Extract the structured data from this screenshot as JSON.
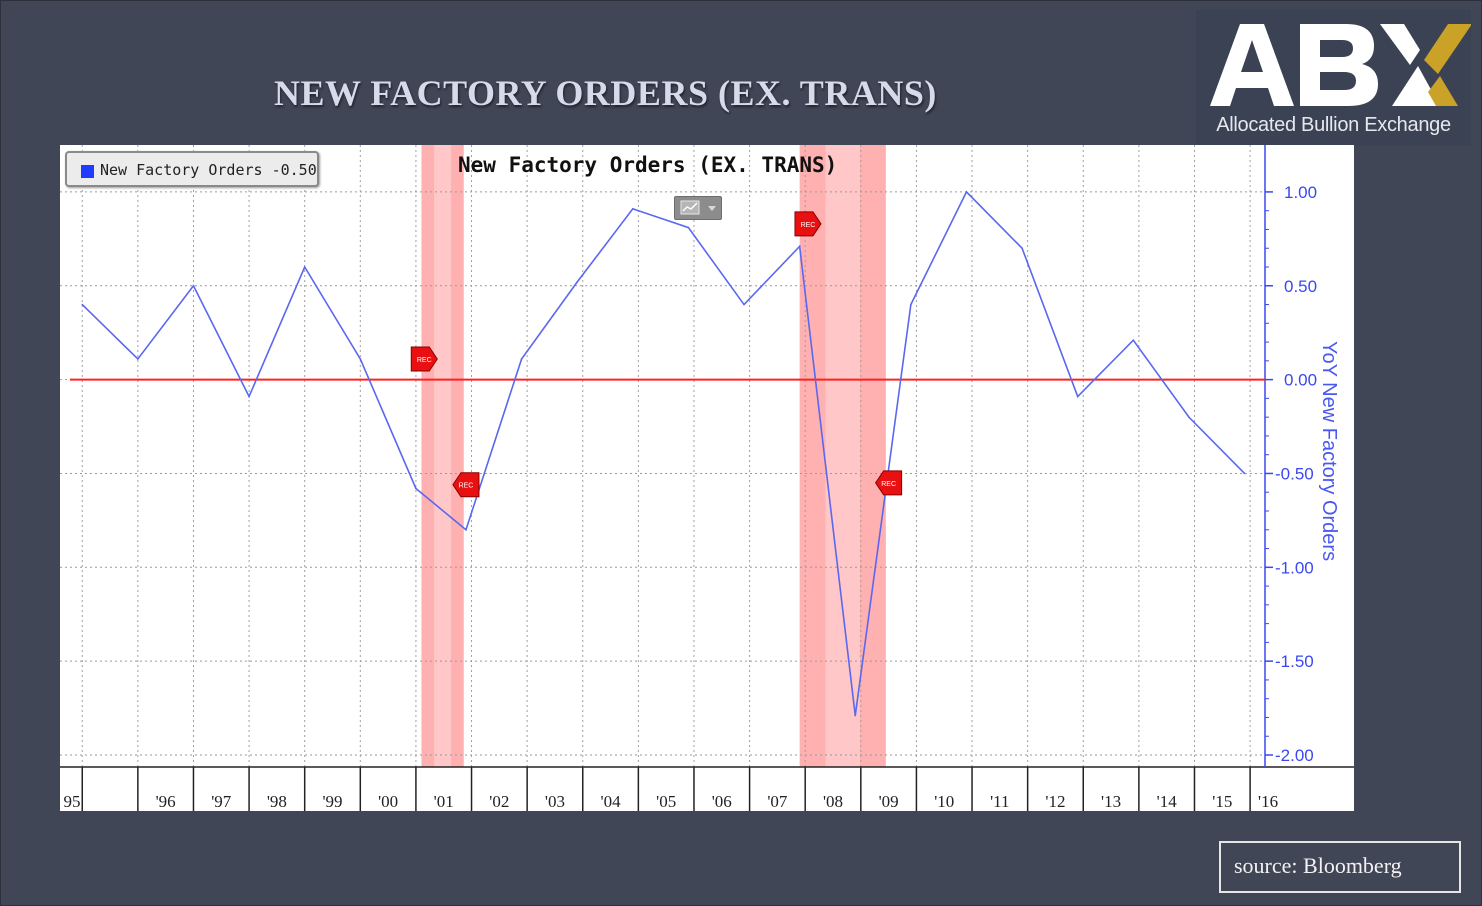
{
  "page_title": "NEW FACTORY ORDERS (EX. TRANS)",
  "logo": {
    "letters": "ABX",
    "tagline": "Allocated Bullion Exchange",
    "colors": {
      "white": "#ffffff",
      "gold": "#c9a227",
      "background": "#3a4254"
    }
  },
  "source_label": "source: Bloomberg",
  "chart_data": {
    "type": "line",
    "title": "New Factory Orders (EX. TRANS)",
    "legend": {
      "label": "New Factory Orders",
      "value": "-0.50",
      "color": "#1f3cff",
      "placement": "top-left"
    },
    "ylabel": "YoY New Factory Orders",
    "ylim": [
      -2.0,
      1.25
    ],
    "y_ticks": [
      1.0,
      0.5,
      0.0,
      -0.5,
      -1.0,
      -1.5,
      -2.0
    ],
    "y_tick_labels": [
      "1.00",
      "0.50",
      "0.00",
      "-0.50",
      "-1.00",
      "-1.50",
      "-2.00"
    ],
    "y_axis_side": "right",
    "x_tick_labels": [
      "95",
      "'96",
      "'97",
      "'98",
      "'99",
      "'00",
      "'01",
      "'02",
      "'03",
      "'04",
      "'05",
      "'06",
      "'07",
      "'08",
      "'09",
      "'10",
      "'11",
      "'12",
      "'13",
      "'14",
      "'15",
      "'16"
    ],
    "x_tick_positions": [
      1995,
      1996,
      1997,
      1998,
      1999,
      2000,
      2001,
      2002,
      2003,
      2004,
      2005,
      2006,
      2007,
      2008,
      2009,
      2010,
      2011,
      2012,
      2013,
      2014,
      2015,
      2016
    ],
    "xlim": [
      1994.6,
      2016.25
    ],
    "grid": true,
    "series": [
      {
        "name": "New Factory Orders",
        "color": "#5a68f0",
        "x": [
          1995.0,
          1996.0,
          1997.0,
          1998.0,
          1999.0,
          2000.0,
          2001.0,
          2001.9,
          2002.9,
          2003.9,
          2004.9,
          2005.9,
          2006.9,
          2007.9,
          2008.9,
          2009.9,
          2010.9,
          2011.9,
          2012.9,
          2013.9,
          2014.9,
          2015.9
        ],
        "y": [
          0.4,
          0.11,
          0.5,
          -0.09,
          0.6,
          0.11,
          -0.58,
          -0.8,
          0.11,
          0.52,
          0.91,
          0.81,
          0.4,
          0.71,
          -1.79,
          0.4,
          1.0,
          0.7,
          -0.09,
          0.21,
          -0.2,
          -0.5
        ]
      }
    ],
    "reference_line": {
      "y": 0.0,
      "color": "#ff2020"
    },
    "recession_bands": [
      {
        "start": 2001.1,
        "end": 2001.86,
        "label": "REC"
      },
      {
        "start": 2007.9,
        "end": 2009.45,
        "label": "REC"
      }
    ],
    "rec_markers": [
      {
        "label": "REC",
        "x": 2001.15,
        "y": 0.11
      },
      {
        "label": "REC",
        "x": 2001.9,
        "y": -0.56
      },
      {
        "label": "REC",
        "x": 2008.05,
        "y": 0.83
      },
      {
        "label": "REC",
        "x": 2009.5,
        "y": -0.55
      }
    ],
    "band_color": "#ffb0b0"
  }
}
